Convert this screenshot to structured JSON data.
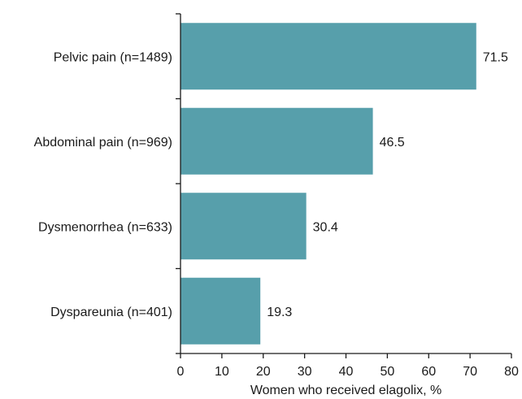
{
  "chart_data": {
    "type": "bar",
    "orientation": "horizontal",
    "title": "",
    "xlabel": "Women who received elagolix, %",
    "ylabel": "",
    "categories": [
      "Pelvic pain (n=1489)",
      "Abdominal pain (n=969)",
      "Dysmenorrhea (n=633)",
      "Dyspareunia (n=401)"
    ],
    "values": [
      71.5,
      46.5,
      30.4,
      19.3
    ],
    "value_labels": [
      "71.5",
      "46.5",
      "30.4",
      "19.3"
    ],
    "xlim": [
      0,
      80
    ],
    "xticks": [
      0,
      10,
      20,
      30,
      40,
      50,
      60,
      70,
      80
    ],
    "xtick_labels": [
      "0",
      "10",
      "20",
      "30",
      "40",
      "50",
      "60",
      "70",
      "80"
    ],
    "bar_color": "#579fab",
    "grid": false,
    "legend": "none"
  }
}
